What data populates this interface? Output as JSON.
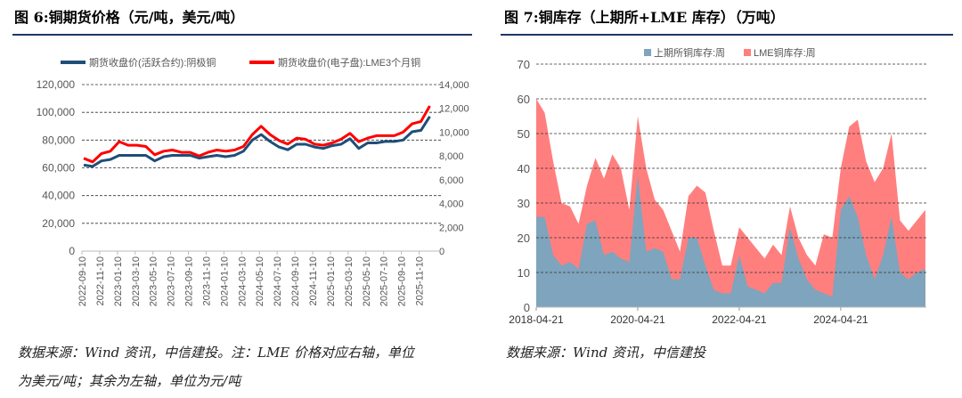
{
  "left": {
    "title": "图 6:铜期货价格（元/吨，美元/吨）",
    "note_line1": "数据来源：Wind 资讯，中信建投。注：LME 价格对应右轴，单位",
    "note_line2": "为美元/吨；其余为左轴，单位为元/吨",
    "chart_data": {
      "type": "line",
      "legend_placement": "top",
      "grid": true,
      "x_ticks": [
        "2022-09-10",
        "2022-11-10",
        "2023-01-10",
        "2023-03-10",
        "2023-05-10",
        "2023-07-10",
        "2023-09-10",
        "2023-11-10",
        "2024-01-10",
        "2024-03-10",
        "2024-05-10",
        "2024-07-10",
        "2024-09-10",
        "2024-11-10",
        "2025-01-10",
        "2025-03-10",
        "2025-05-10",
        "2025-07-10",
        "2025-09-10",
        "2025-11-10"
      ],
      "y_left": {
        "range": [
          0,
          120000
        ],
        "ticks": [
          "0",
          "20,000",
          "40,000",
          "60,000",
          "80,000",
          "100,000",
          "120,000"
        ]
      },
      "y_right": {
        "range": [
          0,
          14000
        ],
        "ticks": [
          "0",
          "2,000",
          "4,000",
          "6,000",
          "8,000",
          "10,000",
          "12,000",
          "14,000"
        ]
      },
      "x": [
        "2022-09",
        "2022-10",
        "2022-11",
        "2022-12",
        "2023-01",
        "2023-02",
        "2023-03",
        "2023-04",
        "2023-05",
        "2023-06",
        "2023-07",
        "2023-08",
        "2023-09",
        "2023-10",
        "2023-11",
        "2023-12",
        "2024-01",
        "2024-02",
        "2024-03",
        "2024-04",
        "2024-05",
        "2024-06",
        "2024-07",
        "2024-08",
        "2024-09",
        "2024-10",
        "2024-11",
        "2024-12",
        "2025-01",
        "2025-02",
        "2025-03",
        "2025-04",
        "2025-05",
        "2025-06",
        "2025-07",
        "2025-08",
        "2025-09",
        "2025-10",
        "2025-11",
        "2025-12"
      ],
      "series": [
        {
          "name": "期货收盘价(活跃合约):阴极铜",
          "axis": "left",
          "color": "#1f4e79",
          "values": [
            62000,
            61000,
            65000,
            66000,
            69000,
            69000,
            69000,
            69000,
            65000,
            68000,
            69000,
            69000,
            69000,
            67000,
            68000,
            69000,
            68000,
            69000,
            72000,
            80000,
            84000,
            79000,
            75000,
            73000,
            77000,
            77000,
            75000,
            74000,
            76000,
            77000,
            81000,
            74000,
            78000,
            78000,
            79000,
            79000,
            80000,
            86000,
            87000,
            97000
          ]
        },
        {
          "name": "期货收盘价(电子盘):LME3个月铜",
          "axis": "right",
          "color": "#ff0000",
          "values": [
            7800,
            7500,
            8200,
            8400,
            9200,
            8900,
            8900,
            8800,
            8100,
            8400,
            8500,
            8300,
            8300,
            8000,
            8300,
            8500,
            8400,
            8500,
            8800,
            9800,
            10500,
            9800,
            9300,
            9000,
            9500,
            9400,
            9000,
            8900,
            9100,
            9400,
            9900,
            9200,
            9500,
            9700,
            9700,
            9700,
            10000,
            10700,
            10900,
            12200
          ]
        }
      ]
    }
  },
  "right": {
    "title": "图 7:铜库存（上期所+LME 库存）（万吨）",
    "note_line1": "数据来源：Wind 资讯，中信建投",
    "chart_data": {
      "type": "area",
      "stacked": true,
      "legend_placement": "top",
      "grid": true,
      "x_ticks": [
        "2018-04-21",
        "2020-04-21",
        "2022-04-21",
        "2024-04-21"
      ],
      "y_range": [
        0,
        70
      ],
      "y_ticks": [
        "0",
        "10",
        "20",
        "30",
        "40",
        "50",
        "60",
        "70"
      ],
      "x": [
        "2018-04",
        "2018-06",
        "2018-08",
        "2018-10",
        "2018-12",
        "2019-02",
        "2019-04",
        "2019-06",
        "2019-08",
        "2019-10",
        "2019-12",
        "2020-02",
        "2020-04",
        "2020-06",
        "2020-08",
        "2020-10",
        "2020-12",
        "2021-02",
        "2021-04",
        "2021-06",
        "2021-08",
        "2021-10",
        "2021-12",
        "2022-02",
        "2022-04",
        "2022-06",
        "2022-08",
        "2022-10",
        "2022-12",
        "2023-02",
        "2023-04",
        "2023-06",
        "2023-08",
        "2023-10",
        "2023-12",
        "2024-02",
        "2024-04",
        "2024-06",
        "2024-08",
        "2024-10",
        "2024-12",
        "2025-02",
        "2025-04",
        "2025-06",
        "2025-08",
        "2025-10",
        "2025-12"
      ],
      "series": [
        {
          "name": "上期所铜库存:周",
          "color": "#7fa4bd",
          "values": [
            26,
            26,
            15,
            12,
            13,
            11,
            24,
            25,
            15,
            16,
            14,
            13,
            38,
            16,
            17,
            16,
            8,
            8,
            20,
            20,
            12,
            5,
            4,
            4,
            15,
            6,
            5,
            4,
            7,
            7,
            23,
            14,
            8,
            5,
            4,
            3,
            28,
            32,
            26,
            15,
            8,
            15,
            26,
            10,
            8,
            10,
            11
          ]
        },
        {
          "name": "LME铜库存:周",
          "color": "#ff7f7f",
          "values": [
            34,
            30,
            27,
            18,
            16,
            13,
            11,
            18,
            22,
            28,
            26,
            15,
            17,
            24,
            14,
            12,
            14,
            8,
            12,
            15,
            21,
            17,
            8,
            8,
            8,
            14,
            12,
            10,
            11,
            8,
            6,
            6,
            7,
            7,
            17,
            17,
            12,
            20,
            28,
            27,
            28,
            25,
            24,
            15,
            14,
            15,
            17
          ]
        }
      ]
    }
  }
}
